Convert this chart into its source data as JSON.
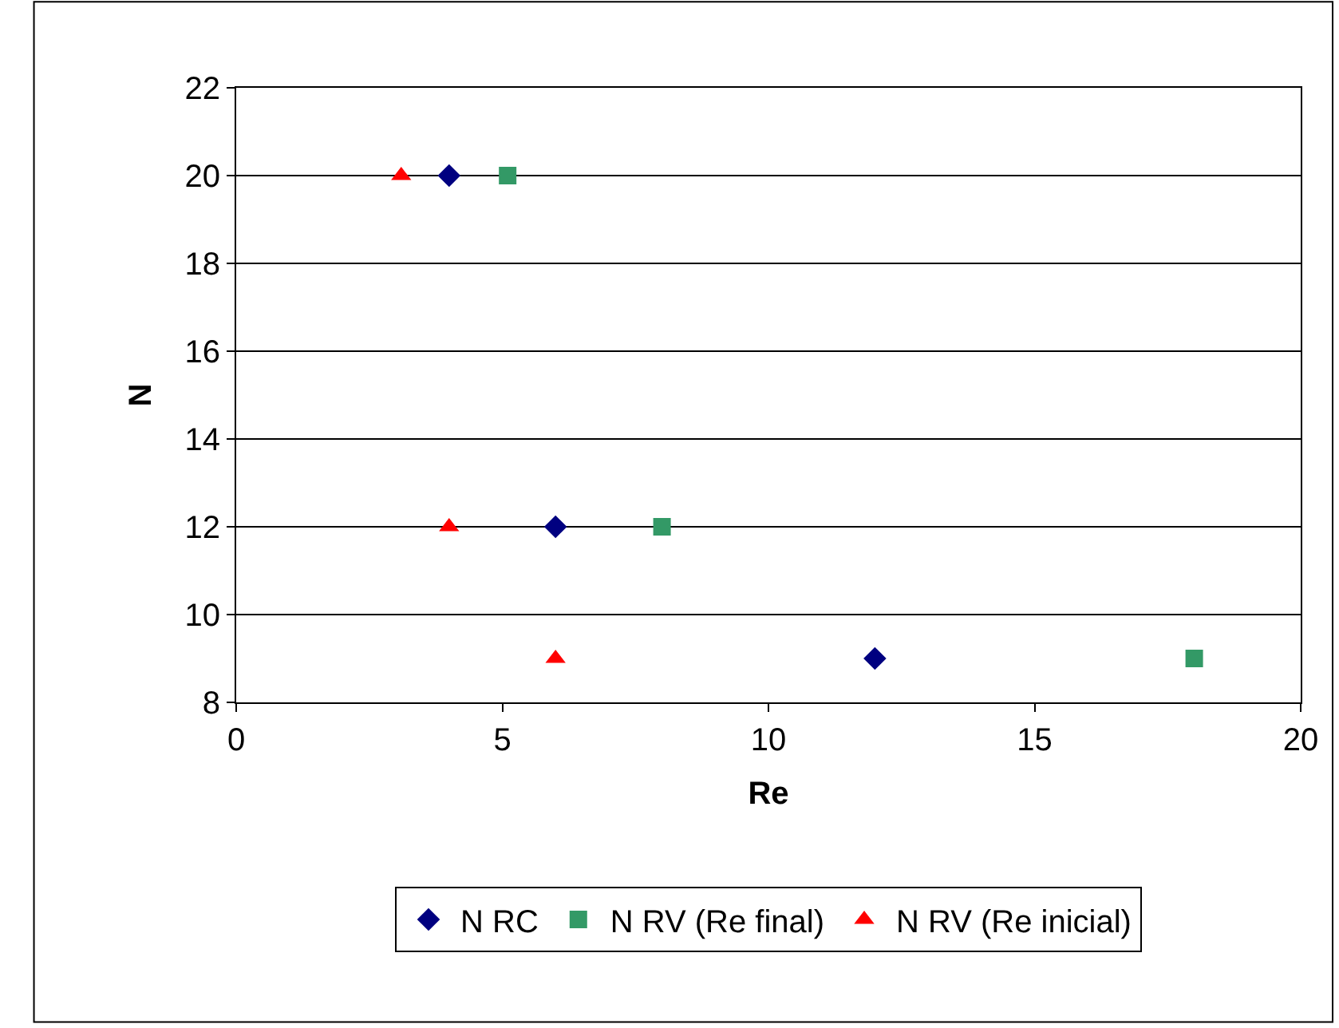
{
  "chart_data": {
    "type": "scatter",
    "xlabel": "Re",
    "ylabel": "N",
    "xlim": [
      0,
      20
    ],
    "xticks": [
      0,
      5,
      10,
      15,
      20
    ],
    "ylim": [
      8,
      22
    ],
    "yticks": [
      8,
      10,
      12,
      14,
      16,
      18,
      20,
      22
    ],
    "grid": "y",
    "legend": "bottom",
    "series": [
      {
        "name": "N RC",
        "color": "#000080",
        "marker": "diamond",
        "x": [
          4,
          6,
          12
        ],
        "values": [
          20,
          12,
          9
        ]
      },
      {
        "name": "N RV (Re final)",
        "color": "#339966",
        "marker": "square",
        "x": [
          5.1,
          8,
          18
        ],
        "values": [
          20,
          12,
          9
        ]
      },
      {
        "name": "N RV (Re inicial)",
        "color": "#ff0000",
        "marker": "triangle",
        "x": [
          3.1,
          4,
          6
        ],
        "values": [
          20,
          12,
          9
        ]
      }
    ]
  }
}
